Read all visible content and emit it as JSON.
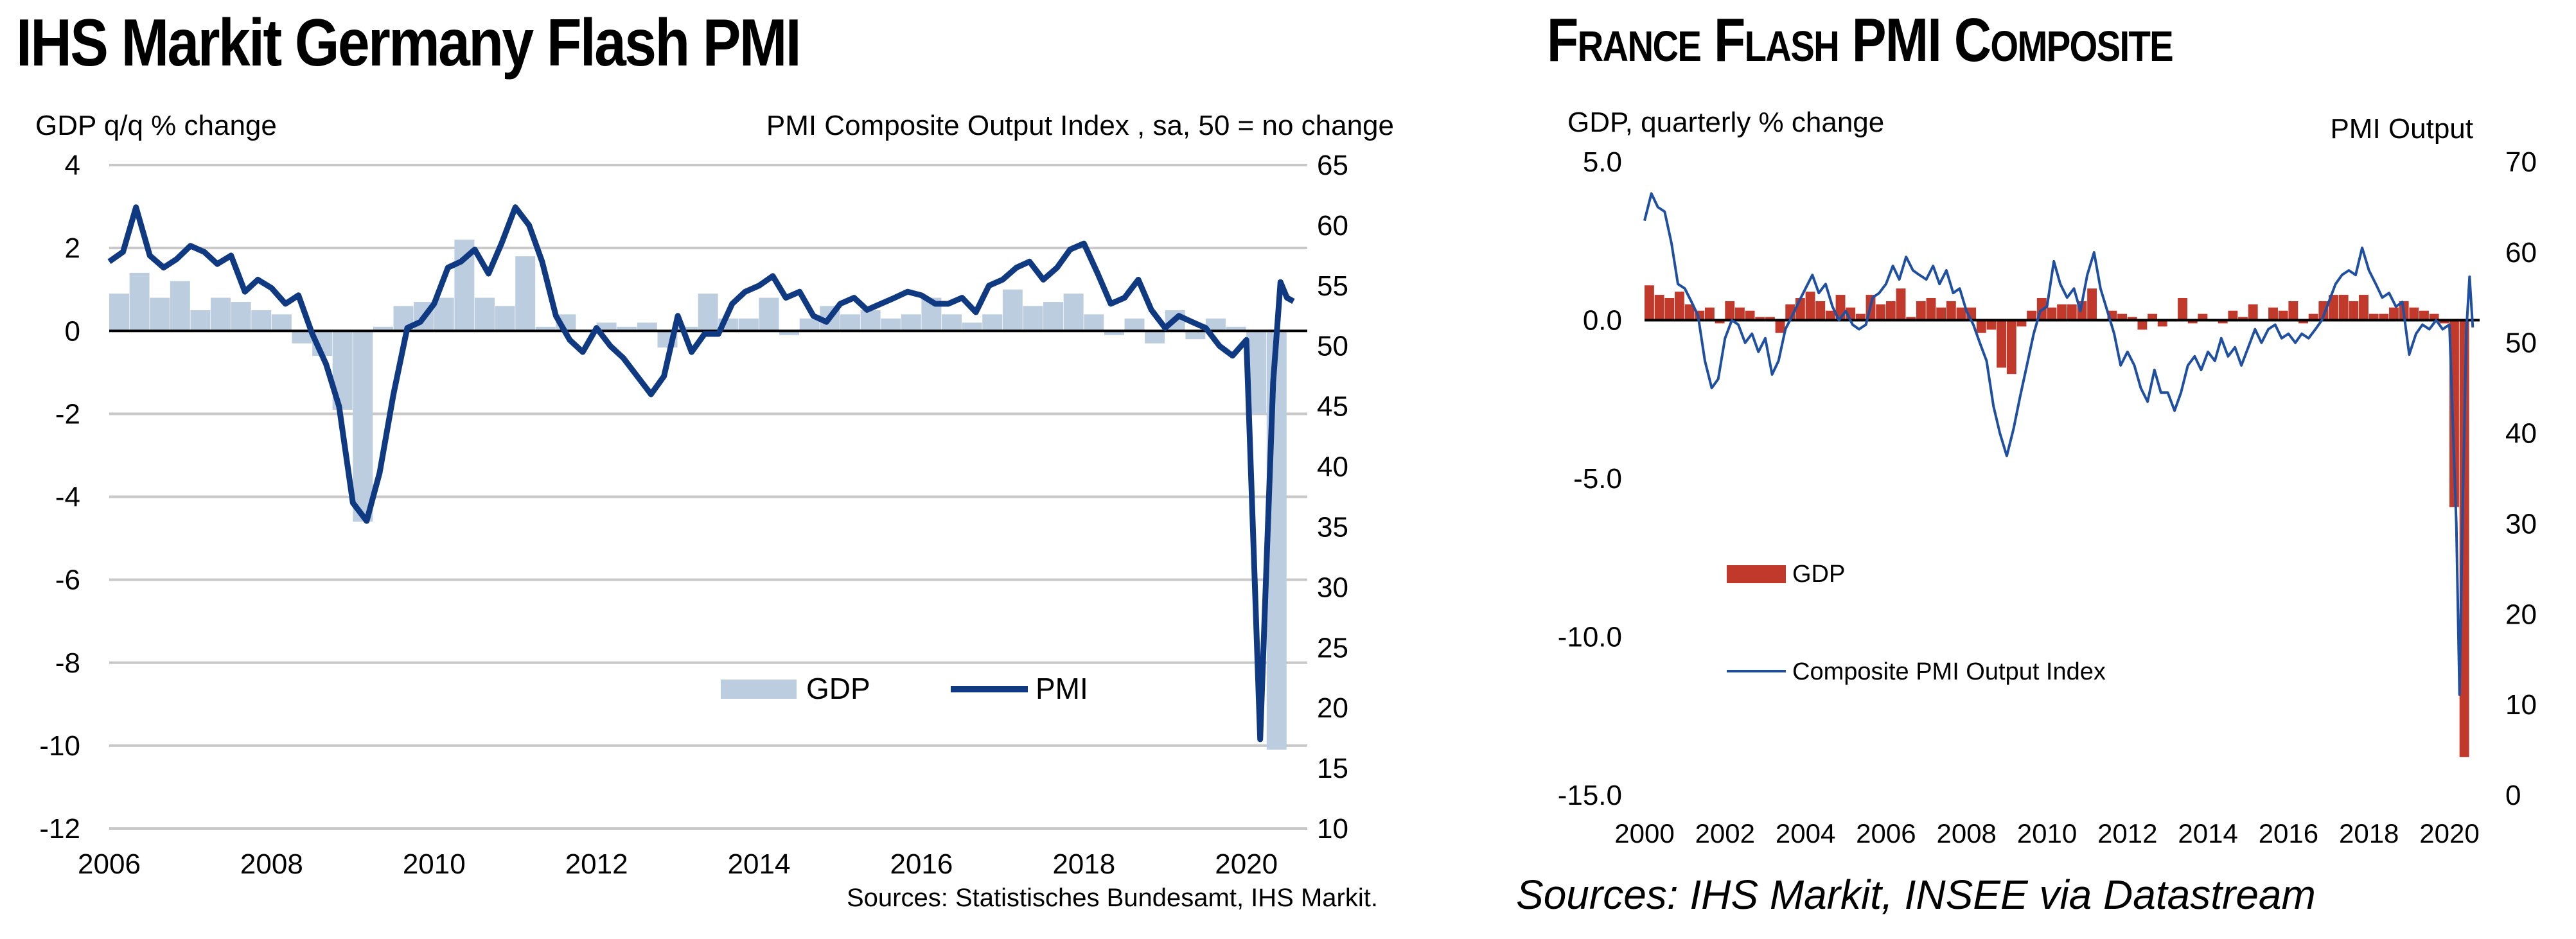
{
  "chart_data": [
    {
      "type": "bar+line",
      "title": "IHS Markit Germany Flash PMI",
      "ylabel_left": "GDP q/q % change",
      "ylabel_right": "PMI Composite  Output Index  , sa, 50 = no change",
      "xlim": [
        2006,
        2020.75
      ],
      "ylim_left": [
        -12,
        4
      ],
      "ylim_right": [
        10,
        65
      ],
      "x_ticks": [
        "2006",
        "2008",
        "2010",
        "2012",
        "2014",
        "2016",
        "2018",
        "2020"
      ],
      "y_left_ticks": [
        "4",
        "2",
        "0",
        "-2",
        "-4",
        "-6",
        "-8",
        "-10",
        "-12"
      ],
      "y_right_ticks": [
        "65",
        "60",
        "55",
        "50",
        "45",
        "40",
        "35",
        "30",
        "25",
        "20",
        "15",
        "10"
      ],
      "grid": "horizontal",
      "legend": {
        "position": "bottom-right",
        "entries": [
          "GDP",
          "PMI"
        ]
      },
      "colors": {
        "gdp": "#bccde0",
        "pmi": "#0f3a82"
      },
      "series": [
        {
          "name": "GDP",
          "type": "bar",
          "x": [
            2006.0,
            2006.25,
            2006.5,
            2006.75,
            2007.0,
            2007.25,
            2007.5,
            2007.75,
            2008.0,
            2008.25,
            2008.5,
            2008.75,
            2009.0,
            2009.25,
            2009.5,
            2009.75,
            2010.0,
            2010.25,
            2010.5,
            2010.75,
            2011.0,
            2011.25,
            2011.5,
            2011.75,
            2012.0,
            2012.25,
            2012.5,
            2012.75,
            2013.0,
            2013.25,
            2013.5,
            2013.75,
            2014.0,
            2014.25,
            2014.5,
            2014.75,
            2015.0,
            2015.25,
            2015.5,
            2015.75,
            2016.0,
            2016.25,
            2016.5,
            2016.75,
            2017.0,
            2017.25,
            2017.5,
            2017.75,
            2018.0,
            2018.25,
            2018.5,
            2018.75,
            2019.0,
            2019.25,
            2019.5,
            2019.75,
            2020.0,
            2020.25
          ],
          "values": [
            0.9,
            1.4,
            0.8,
            1.2,
            0.5,
            0.8,
            0.7,
            0.5,
            0.4,
            -0.3,
            -0.6,
            -1.9,
            -4.6,
            0.1,
            0.6,
            0.7,
            0.8,
            2.2,
            0.8,
            0.6,
            1.8,
            0.1,
            0.4,
            0.0,
            0.2,
            0.1,
            0.2,
            -0.4,
            0.1,
            0.9,
            0.3,
            0.3,
            0.8,
            -0.1,
            0.3,
            0.6,
            0.4,
            0.5,
            0.3,
            0.4,
            0.8,
            0.4,
            0.2,
            0.4,
            1.0,
            0.6,
            0.7,
            0.9,
            0.4,
            -0.1,
            0.3,
            -0.3,
            0.5,
            -0.2,
            0.3,
            0.1,
            -2.0,
            -10.1
          ]
        },
        {
          "name": "PMI",
          "type": "line",
          "x": [
            2006.0,
            2006.17,
            2006.33,
            2006.5,
            2006.67,
            2006.83,
            2007.0,
            2007.17,
            2007.33,
            2007.5,
            2007.67,
            2007.83,
            2008.0,
            2008.17,
            2008.33,
            2008.5,
            2008.67,
            2008.83,
            2009.0,
            2009.17,
            2009.33,
            2009.5,
            2009.67,
            2009.83,
            2010.0,
            2010.17,
            2010.33,
            2010.5,
            2010.67,
            2010.83,
            2011.0,
            2011.17,
            2011.33,
            2011.5,
            2011.67,
            2011.83,
            2012.0,
            2012.17,
            2012.33,
            2012.5,
            2012.67,
            2012.83,
            2013.0,
            2013.17,
            2013.33,
            2013.5,
            2013.67,
            2013.83,
            2014.0,
            2014.17,
            2014.33,
            2014.5,
            2014.67,
            2014.83,
            2015.0,
            2015.17,
            2015.33,
            2015.5,
            2015.67,
            2015.83,
            2016.0,
            2016.17,
            2016.33,
            2016.5,
            2016.67,
            2016.83,
            2017.0,
            2017.17,
            2017.33,
            2017.5,
            2017.67,
            2017.83,
            2018.0,
            2018.17,
            2018.33,
            2018.5,
            2018.67,
            2018.83,
            2019.0,
            2019.17,
            2019.33,
            2019.5,
            2019.67,
            2019.83,
            2020.0,
            2020.08,
            2020.17,
            2020.25,
            2020.33,
            2020.42,
            2020.5,
            2020.58
          ],
          "values": [
            57.0,
            57.8,
            61.5,
            57.5,
            56.5,
            57.2,
            58.3,
            57.8,
            56.8,
            57.5,
            54.5,
            55.5,
            54.8,
            53.5,
            54.2,
            51.0,
            48.5,
            45.0,
            37.0,
            35.5,
            39.5,
            46.0,
            51.5,
            52.0,
            53.5,
            56.5,
            57.0,
            58.0,
            56.0,
            58.5,
            61.5,
            60.0,
            57.0,
            52.5,
            50.5,
            49.5,
            51.5,
            50.0,
            49.0,
            47.5,
            46.0,
            47.5,
            52.5,
            49.5,
            51.0,
            51.0,
            53.5,
            54.5,
            55.0,
            55.8,
            54.0,
            54.5,
            52.5,
            52.0,
            53.5,
            54.0,
            53.0,
            53.5,
            54.0,
            54.5,
            54.2,
            53.5,
            53.5,
            54.0,
            52.8,
            55.0,
            55.5,
            56.5,
            57.0,
            55.5,
            56.5,
            58.0,
            58.5,
            56.0,
            53.5,
            54.0,
            55.5,
            53.0,
            51.5,
            52.5,
            52.0,
            51.5,
            50.0,
            49.2,
            50.5,
            35.0,
            17.4,
            32.3,
            47.0,
            55.3,
            54.0,
            53.7
          ]
        }
      ],
      "source": "Sources: Statistisches Bundesamt, IHS Markit."
    },
    {
      "type": "bar+line",
      "title": "France Flash PMI Composite",
      "ylabel_left": "GDP, quarterly % change",
      "ylabel_right": "PMI Output",
      "xlim": [
        2000,
        2020.75
      ],
      "ylim_left": [
        -15,
        5
      ],
      "ylim_right": [
        0,
        70
      ],
      "x_ticks": [
        "2000",
        "2002",
        "2004",
        "2006",
        "2008",
        "2010",
        "2012",
        "2014",
        "2016",
        "2018",
        "2020"
      ],
      "y_left_ticks": [
        "5.0",
        "0.0",
        "-5.0",
        "-10.0",
        "-15.0"
      ],
      "y_right_ticks": [
        "70",
        "60",
        "50",
        "40",
        "30",
        "20",
        "10",
        "0"
      ],
      "grid": "none",
      "legend": {
        "position": "left-middle",
        "entries": [
          "GDP",
          "Composite PMI Output Index"
        ]
      },
      "colors": {
        "gdp": "#c0392b",
        "pmi": "#1f4fa0"
      },
      "series": [
        {
          "name": "GDP",
          "type": "bar",
          "x": [
            2000.0,
            2000.25,
            2000.5,
            2000.75,
            2001.0,
            2001.25,
            2001.5,
            2001.75,
            2002.0,
            2002.25,
            2002.5,
            2002.75,
            2003.0,
            2003.25,
            2003.5,
            2003.75,
            2004.0,
            2004.25,
            2004.5,
            2004.75,
            2005.0,
            2005.25,
            2005.5,
            2005.75,
            2006.0,
            2006.25,
            2006.5,
            2006.75,
            2007.0,
            2007.25,
            2007.5,
            2007.75,
            2008.0,
            2008.25,
            2008.5,
            2008.75,
            2009.0,
            2009.25,
            2009.5,
            2009.75,
            2010.0,
            2010.25,
            2010.5,
            2010.75,
            2011.0,
            2011.25,
            2011.5,
            2011.75,
            2012.0,
            2012.25,
            2012.5,
            2012.75,
            2013.0,
            2013.25,
            2013.5,
            2013.75,
            2014.0,
            2014.25,
            2014.5,
            2014.75,
            2015.0,
            2015.25,
            2015.5,
            2015.75,
            2016.0,
            2016.25,
            2016.5,
            2016.75,
            2017.0,
            2017.25,
            2017.5,
            2017.75,
            2018.0,
            2018.25,
            2018.5,
            2018.75,
            2019.0,
            2019.25,
            2019.5,
            2019.75,
            2020.0,
            2020.25
          ],
          "values": [
            1.1,
            0.8,
            0.7,
            0.9,
            0.5,
            0.3,
            0.4,
            -0.1,
            0.6,
            0.4,
            0.3,
            0.1,
            0.1,
            -0.4,
            0.5,
            0.7,
            0.9,
            0.6,
            0.3,
            0.8,
            0.4,
            0.2,
            0.8,
            0.5,
            0.6,
            1.0,
            0.1,
            0.6,
            0.7,
            0.4,
            0.6,
            0.4,
            0.4,
            -0.4,
            -0.3,
            -1.5,
            -1.7,
            -0.2,
            0.3,
            0.7,
            0.4,
            0.5,
            0.5,
            0.6,
            1.0,
            0.0,
            0.3,
            0.2,
            0.1,
            -0.3,
            0.2,
            -0.2,
            0.0,
            0.7,
            -0.1,
            0.2,
            0.0,
            -0.1,
            0.3,
            0.1,
            0.5,
            0.0,
            0.4,
            0.3,
            0.6,
            -0.1,
            0.2,
            0.6,
            0.8,
            0.8,
            0.6,
            0.8,
            0.2,
            0.2,
            0.4,
            0.6,
            0.4,
            0.3,
            0.2,
            -0.1,
            -5.9,
            -13.8
          ]
        },
        {
          "name": "Composite PMI Output Index",
          "type": "line",
          "x": [
            2000.0,
            2000.17,
            2000.33,
            2000.5,
            2000.67,
            2000.83,
            2001.0,
            2001.17,
            2001.33,
            2001.5,
            2001.67,
            2001.83,
            2002.0,
            2002.17,
            2002.33,
            2002.5,
            2002.67,
            2002.83,
            2003.0,
            2003.17,
            2003.33,
            2003.5,
            2003.67,
            2003.83,
            2004.0,
            2004.17,
            2004.33,
            2004.5,
            2004.67,
            2004.83,
            2005.0,
            2005.17,
            2005.33,
            2005.5,
            2005.67,
            2005.83,
            2006.0,
            2006.17,
            2006.33,
            2006.5,
            2006.67,
            2006.83,
            2007.0,
            2007.17,
            2007.33,
            2007.5,
            2007.67,
            2007.83,
            2008.0,
            2008.17,
            2008.33,
            2008.5,
            2008.67,
            2008.83,
            2009.0,
            2009.17,
            2009.33,
            2009.5,
            2009.67,
            2009.83,
            2010.0,
            2010.17,
            2010.33,
            2010.5,
            2010.67,
            2010.83,
            2011.0,
            2011.17,
            2011.33,
            2011.5,
            2011.67,
            2011.83,
            2012.0,
            2012.17,
            2012.33,
            2012.5,
            2012.67,
            2012.83,
            2013.0,
            2013.17,
            2013.33,
            2013.5,
            2013.67,
            2013.83,
            2014.0,
            2014.17,
            2014.33,
            2014.5,
            2014.67,
            2014.83,
            2015.0,
            2015.17,
            2015.33,
            2015.5,
            2015.67,
            2015.83,
            2016.0,
            2016.17,
            2016.33,
            2016.5,
            2016.67,
            2016.83,
            2017.0,
            2017.17,
            2017.33,
            2017.5,
            2017.67,
            2017.83,
            2018.0,
            2018.17,
            2018.33,
            2018.5,
            2018.67,
            2018.83,
            2019.0,
            2019.17,
            2019.33,
            2019.5,
            2019.67,
            2019.83,
            2020.0,
            2020.17,
            2020.25,
            2020.33,
            2020.42,
            2020.5,
            2020.58
          ],
          "values": [
            63.5,
            66.5,
            65.0,
            64.5,
            61.0,
            56.5,
            56.0,
            54.5,
            53.0,
            48.0,
            45.0,
            46.0,
            50.5,
            52.5,
            52.0,
            50.0,
            51.0,
            49.0,
            50.5,
            46.5,
            48.0,
            51.5,
            53.0,
            54.5,
            56.0,
            57.5,
            55.5,
            56.5,
            54.0,
            52.5,
            53.5,
            52.0,
            51.5,
            52.0,
            55.0,
            55.5,
            56.5,
            58.5,
            57.0,
            59.5,
            58.0,
            57.5,
            57.0,
            58.5,
            56.5,
            58.0,
            55.5,
            56.0,
            53.5,
            52.0,
            50.0,
            48.0,
            43.0,
            40.0,
            37.5,
            40.5,
            44.0,
            47.5,
            51.0,
            53.5,
            54.0,
            59.0,
            56.5,
            55.0,
            56.0,
            53.5,
            57.5,
            60.0,
            56.0,
            53.5,
            51.0,
            47.5,
            49.0,
            47.5,
            45.0,
            43.5,
            47.0,
            44.5,
            44.5,
            42.5,
            44.5,
            47.5,
            48.5,
            47.0,
            49.0,
            48.0,
            50.5,
            48.5,
            49.5,
            47.5,
            49.5,
            51.5,
            50.0,
            51.5,
            52.0,
            50.5,
            51.0,
            50.0,
            51.0,
            50.5,
            51.5,
            52.5,
            54.5,
            56.5,
            57.5,
            58.0,
            57.5,
            60.5,
            58.0,
            56.5,
            55.0,
            55.5,
            54.0,
            54.5,
            48.7,
            51.0,
            52.0,
            51.5,
            52.5,
            51.5,
            52.0,
            30.0,
            11.1,
            32.1,
            51.3,
            57.3,
            51.7
          ]
        }
      ],
      "legend_labels": {
        "gdp": "GDP",
        "pmi": "Composite PMI Output Index"
      },
      "source": "Sources: IHS Markit, INSEE via Datastream"
    }
  ]
}
